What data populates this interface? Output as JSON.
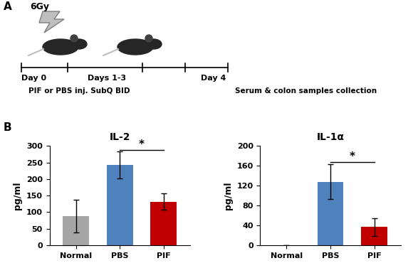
{
  "diagram": {
    "panel": "A",
    "dose": "6Gy",
    "timeline": [
      "Day 0",
      "Days 1-3",
      "Day 4"
    ],
    "treatment": "PIF or PBS inj. SubQ BID",
    "collection": "Serum & colon samples collection"
  },
  "chart_panel": "B",
  "chart_data": [
    {
      "type": "bar",
      "title": "IL-2",
      "y_label": "pg/ml",
      "categories": [
        "Normal",
        "PBS",
        "PIF"
      ],
      "values": [
        88,
        243,
        132
      ],
      "errors": [
        50,
        40,
        25
      ],
      "colors": [
        "#a6a6a6",
        "#4f81bd",
        "#c00000"
      ],
      "ylim": [
        0,
        300
      ],
      "yticks": [
        0,
        50,
        100,
        150,
        200,
        250,
        300
      ],
      "grid": false,
      "significance": {
        "text": "*",
        "categories": [
          "PBS",
          "PIF"
        ]
      }
    },
    {
      "type": "bar",
      "title": "IL-1α",
      "y_label": "pg/ml",
      "categories": [
        "Normal",
        "PBS",
        "PIF"
      ],
      "values": [
        0,
        128,
        37
      ],
      "errors": [
        0,
        35,
        18
      ],
      "colors": [
        "#a6a6a6",
        "#4f81bd",
        "#c00000"
      ],
      "ylim": [
        0,
        200
      ],
      "yticks": [
        0,
        40,
        80,
        120,
        160,
        200
      ],
      "grid": false,
      "significance": {
        "text": "*",
        "categories": [
          "PBS",
          "PIF"
        ]
      }
    }
  ]
}
